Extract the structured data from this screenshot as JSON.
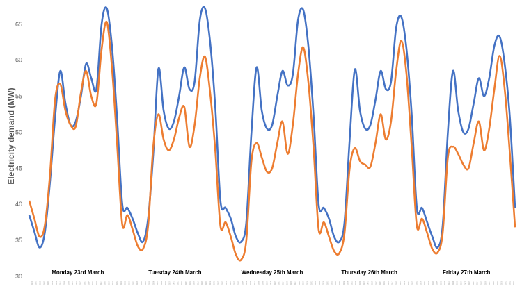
{
  "chart_data": {
    "type": "line",
    "title": "",
    "ylabel": "Electricity demand (MW)",
    "xlabel": "",
    "ylim": [
      30,
      67
    ],
    "yticks": [
      30,
      35,
      40,
      45,
      50,
      55,
      60,
      65
    ],
    "grid": false,
    "legend": "none",
    "day_labels": [
      "Monday 23rd March",
      "Tuesday 24th March",
      "Wednesday 25th March",
      "Thursday 26th March",
      "Friday 27th March"
    ],
    "x_tick_labels": [
      "00:30",
      "01:30",
      "02:30",
      "03:30",
      "04:30",
      "05:30",
      "06:30",
      "07:30",
      "08:30",
      "09:30",
      "10:30",
      "11:30",
      "12:30",
      "13:30",
      "14:30",
      "15:30",
      "16:30",
      "17:30",
      "18:30",
      "19:30",
      "20:30",
      "21:30",
      "22:30",
      "23:30"
    ],
    "series": [
      {
        "color": "#4472C4",
        "values": [
          38.5,
          36.2,
          34.0,
          36.0,
          43.0,
          52.0,
          58.5,
          54.0,
          51.0,
          51.5,
          55.0,
          59.5,
          57.5,
          56.0,
          65.0,
          67.2,
          62.0,
          52.0,
          40.0,
          39.5,
          38.0,
          36.0,
          34.8,
          38.0,
          47.0,
          58.8,
          53.0,
          50.5,
          51.5,
          55.0,
          59.0,
          56.0,
          57.0,
          65.5,
          67.2,
          62.5,
          53.5,
          40.5,
          39.5,
          38.0,
          35.5,
          34.8,
          37.5,
          50.0,
          59.0,
          53.0,
          50.5,
          51.0,
          55.0,
          58.5,
          56.5,
          58.0,
          65.5,
          67.0,
          62.0,
          52.5,
          40.0,
          39.5,
          38.0,
          35.5,
          34.8,
          37.5,
          49.0,
          58.7,
          53.0,
          50.5,
          51.0,
          54.5,
          58.5,
          56.0,
          57.0,
          64.5,
          66.0,
          61.5,
          52.5,
          39.5,
          39.5,
          37.5,
          35.5,
          34.0,
          37.0,
          50.0,
          58.5,
          53.0,
          50.0,
          50.5,
          54.0,
          57.5,
          55.0,
          57.5,
          62.0,
          63.3,
          59.5,
          52.0,
          39.5
        ]
      },
      {
        "color": "#ED7D31",
        "values": [
          40.5,
          38.0,
          35.5,
          37.0,
          44.0,
          54.5,
          56.7,
          53.0,
          51.0,
          50.8,
          55.5,
          58.5,
          55.0,
          54.0,
          61.5,
          65.3,
          59.0,
          48.5,
          37.2,
          38.5,
          36.5,
          34.2,
          33.8,
          37.0,
          48.0,
          52.5,
          49.0,
          47.5,
          49.0,
          52.0,
          53.5,
          48.0,
          51.0,
          57.5,
          60.5,
          55.5,
          47.5,
          37.0,
          37.5,
          35.5,
          33.0,
          32.3,
          35.0,
          46.0,
          48.5,
          46.5,
          44.5,
          45.0,
          48.5,
          51.5,
          47.0,
          51.0,
          58.0,
          61.8,
          57.0,
          48.0,
          36.5,
          37.5,
          35.5,
          33.5,
          33.2,
          36.0,
          45.0,
          47.8,
          46.0,
          45.5,
          45.2,
          48.5,
          52.5,
          49.0,
          51.5,
          58.5,
          62.7,
          58.0,
          48.0,
          37.0,
          38.0,
          36.0,
          33.8,
          33.3,
          36.0,
          46.5,
          48.0,
          47.0,
          45.5,
          45.0,
          48.5,
          51.5,
          47.5,
          50.5,
          56.0,
          60.6,
          56.0,
          47.0,
          36.8
        ]
      }
    ]
  }
}
